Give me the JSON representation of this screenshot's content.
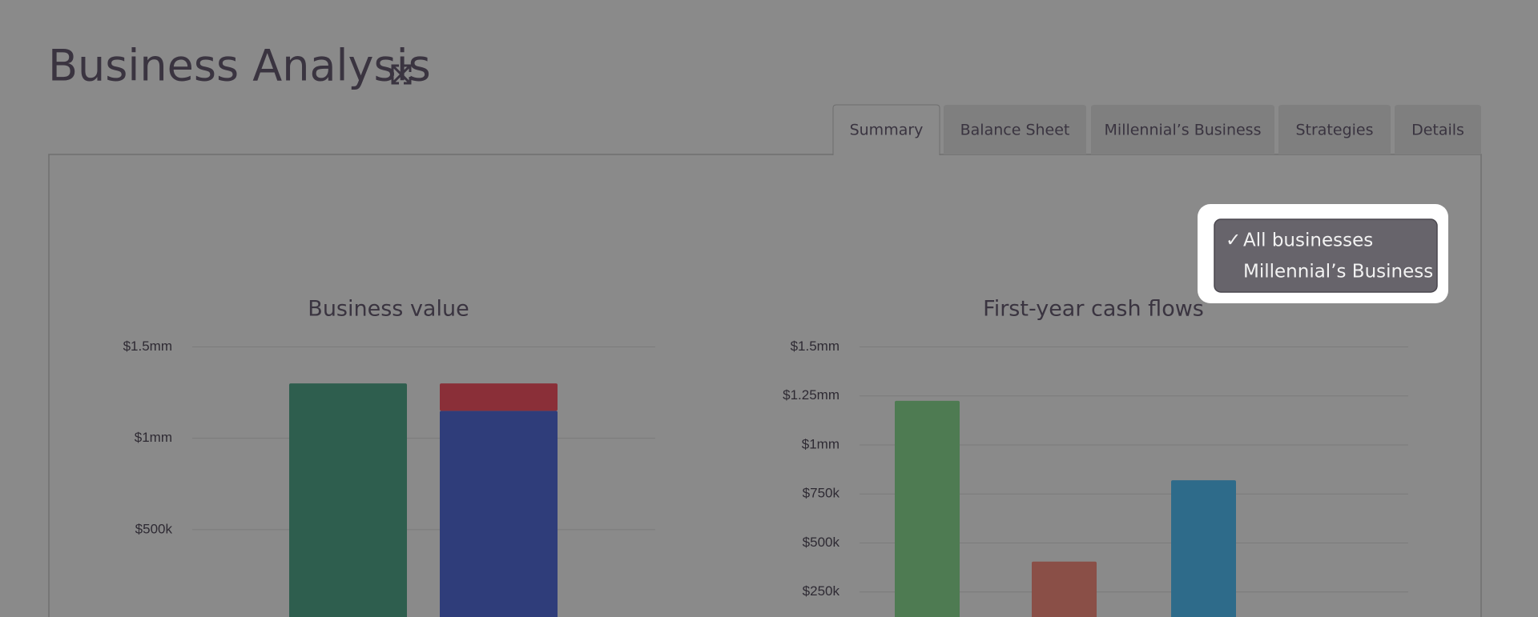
{
  "header": {
    "title": "Business Analysis"
  },
  "tabs": [
    "Summary",
    "Balance Sheet",
    "Millennial’s Business",
    "Strategies",
    "Details"
  ],
  "dropdown": {
    "options": [
      "All businesses",
      "Millennial’s Business"
    ]
  },
  "chart_data": [
    {
      "type": "bar",
      "title": "Business value",
      "stacked": true,
      "categories": [
        null,
        null
      ],
      "series": [
        {
          "color": "#2e5e4e",
          "values": [
            1300000,
            null
          ]
        },
        {
          "color": "#2f3d7a",
          "values": [
            null,
            1150000
          ]
        },
        {
          "color": "#8a2f38",
          "values": [
            null,
            150000
          ]
        }
      ],
      "ylim": [
        0,
        1500000
      ],
      "yticks": [
        {
          "value": 500000,
          "label": "$500k"
        },
        {
          "value": 1000000,
          "label": "$1mm"
        },
        {
          "value": 1500000,
          "label": "$1.5mm"
        }
      ],
      "grid": true
    },
    {
      "type": "bar",
      "title": "First-year cash flows",
      "categories": [
        null,
        null,
        null
      ],
      "values": [
        1225000,
        405000,
        820000
      ],
      "colors": [
        "#4e7b52",
        "#8a4f47",
        "#2e6b8a"
      ],
      "ylim": [
        0,
        1500000
      ],
      "yticks": [
        {
          "value": 250000,
          "label": "$250k"
        },
        {
          "value": 500000,
          "label": "$500k"
        },
        {
          "value": 750000,
          "label": "$750k"
        },
        {
          "value": 1000000,
          "label": "$1mm"
        },
        {
          "value": 1250000,
          "label": "$1.25mm"
        },
        {
          "value": 1500000,
          "label": "$1.5mm"
        }
      ],
      "grid": true
    }
  ]
}
